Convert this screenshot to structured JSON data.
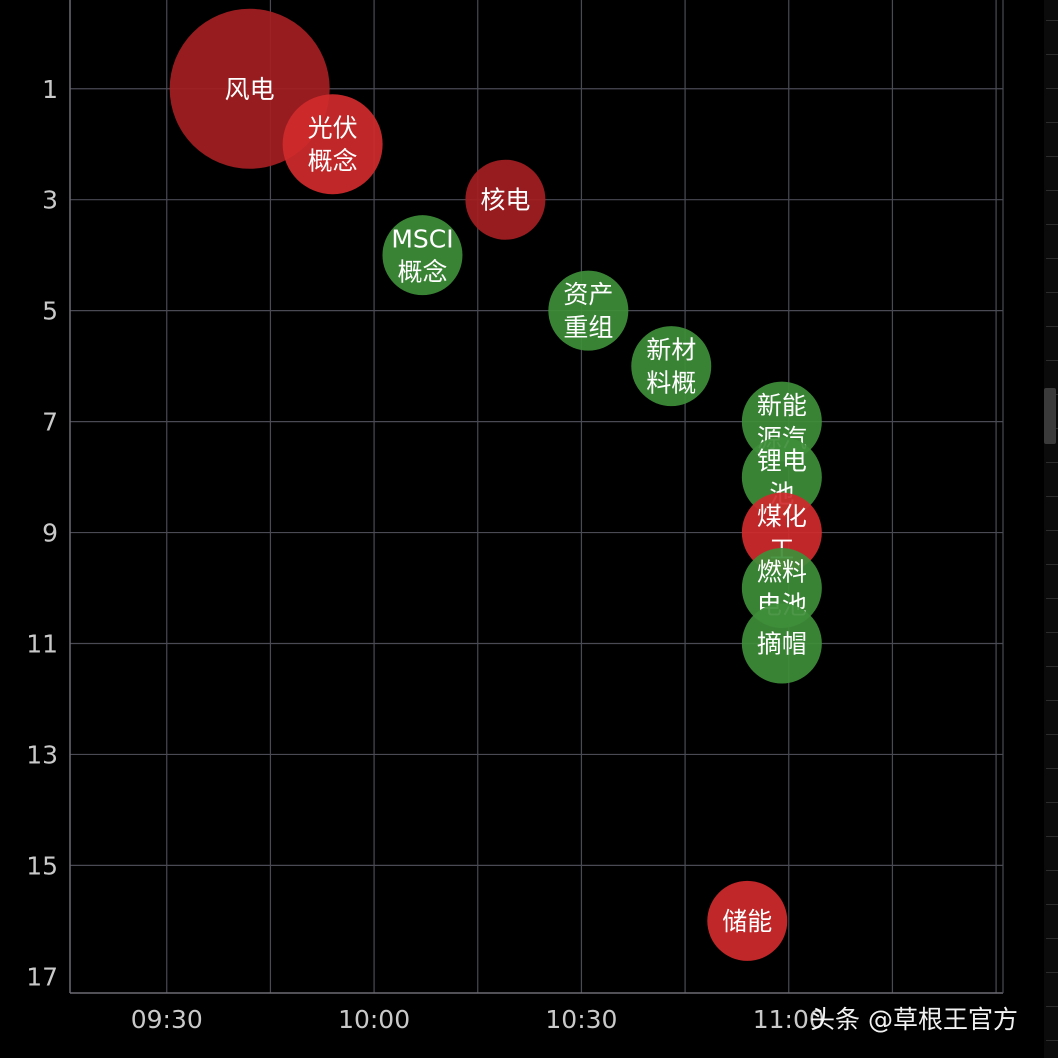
{
  "chart_data": {
    "type": "bubble",
    "x_axis": {
      "ticks": [
        "09:30",
        "10:00",
        "10:30",
        "11:00"
      ],
      "range_minutes": [
        "09:16",
        "11:31"
      ]
    },
    "y_axis": {
      "ticks": [
        1,
        3,
        5,
        7,
        9,
        11,
        13,
        15,
        17
      ],
      "inverted": true,
      "range": [
        -0.6,
        17.3
      ]
    },
    "grid": true,
    "points": [
      {
        "label": "风电",
        "time": "09:42",
        "rank": 1,
        "size": 80,
        "color": "#a31e22"
      },
      {
        "label": "光伏概念",
        "time": "09:54",
        "rank": 2,
        "size": 50,
        "color": "#d02a2c"
      },
      {
        "label": "核电",
        "time": "10:19",
        "rank": 3,
        "size": 40,
        "color": "#a31e22"
      },
      {
        "label": "MSCI概念",
        "time": "10:07",
        "rank": 4,
        "size": 40,
        "color": "#3e8e3a"
      },
      {
        "label": "资产重组",
        "time": "10:31",
        "rank": 5,
        "size": 40,
        "color": "#3e8e3a"
      },
      {
        "label": "新材料概",
        "time": "10:43",
        "rank": 6,
        "size": 40,
        "color": "#3e8e3a"
      },
      {
        "label": "新能源汽",
        "time": "10:59",
        "rank": 7,
        "size": 40,
        "color": "#3e8e3a"
      },
      {
        "label": "锂电池",
        "time": "10:59",
        "rank": 8,
        "size": 40,
        "color": "#3e8e3a"
      },
      {
        "label": "煤化工",
        "time": "10:59",
        "rank": 9,
        "size": 40,
        "color": "#d02a2c"
      },
      {
        "label": "燃料电池",
        "time": "10:59",
        "rank": 10,
        "size": 40,
        "color": "#3e8e3a"
      },
      {
        "label": "摘帽",
        "time": "10:59",
        "rank": 11,
        "size": 40,
        "color": "#3e8e3a"
      },
      {
        "label": "储能",
        "time": "10:54",
        "rank": 16,
        "size": 40,
        "color": "#d02a2c"
      }
    ],
    "colors": {
      "background": "#000000",
      "grid": "#4a4a55",
      "axis_text": "#c9c9c9",
      "label_text": "#ffffff"
    }
  },
  "watermark": "头条 @草根王官方"
}
